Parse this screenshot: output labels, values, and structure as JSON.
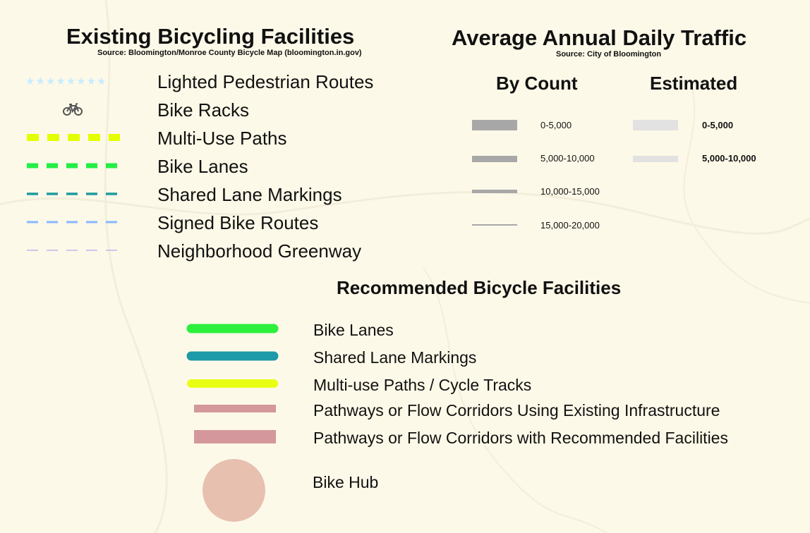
{
  "colors": {
    "background": "#fdf9e8",
    "lighted_pedestrian": "#c8ecff",
    "multi_use_paths": "#e4ff00",
    "bike_lanes": "#22ee44",
    "shared_lane_markings": "#1d9ba0",
    "signed_bike_routes": "#86b8ff",
    "neighborhood_greenway": "#c2b6ee",
    "count_gray": "#a8a8a8",
    "estimated_gray": "#e2e2e2",
    "rec_bike_lanes": "#2cf03c",
    "rec_shared": "#1e9aa8",
    "rec_multiuse": "#e8ff14",
    "rec_pathway": "#d4979b",
    "bike_hub": "#e8c0b0"
  },
  "existing": {
    "title": "Existing Bicycling Facilities",
    "source": "Source: Bloomington/Monroe County Bicycle Map (bloomington.in.gov)",
    "items": [
      {
        "label": "Lighted Pedestrian Routes",
        "icon": "star-icon"
      },
      {
        "label": "Bike Racks",
        "icon": "bicycle-icon"
      },
      {
        "label": "Multi-Use Paths",
        "icon": "dash-line"
      },
      {
        "label": "Bike Lanes",
        "icon": "dash-line"
      },
      {
        "label": "Shared Lane Markings",
        "icon": "dash-line"
      },
      {
        "label": "Signed Bike Routes",
        "icon": "dash-line"
      },
      {
        "label": "Neighborhood Greenway",
        "icon": "dash-line"
      }
    ]
  },
  "traffic": {
    "title": "Average Annual Daily Traffic",
    "source": "Source: City of Bloomington",
    "by_count": {
      "heading": "By Count",
      "items": [
        "0-5,000",
        "5,000-10,000",
        "10,000-15,000",
        "15,000-20,000"
      ]
    },
    "estimated": {
      "heading": "Estimated",
      "items": [
        "0-5,000",
        "5,000-10,000"
      ]
    }
  },
  "recommended": {
    "title": "Recommended Bicycle Facilities",
    "items": [
      {
        "label": "Bike Lanes"
      },
      {
        "label": "Shared Lane Markings"
      },
      {
        "label": "Multi-use Paths / Cycle Tracks"
      },
      {
        "label": "Pathways or Flow Corridors Using Existing Infrastructure"
      },
      {
        "label": "Pathways or Flow Corridors with Recommended Facilities"
      },
      {
        "label": "Bike Hub"
      }
    ]
  }
}
